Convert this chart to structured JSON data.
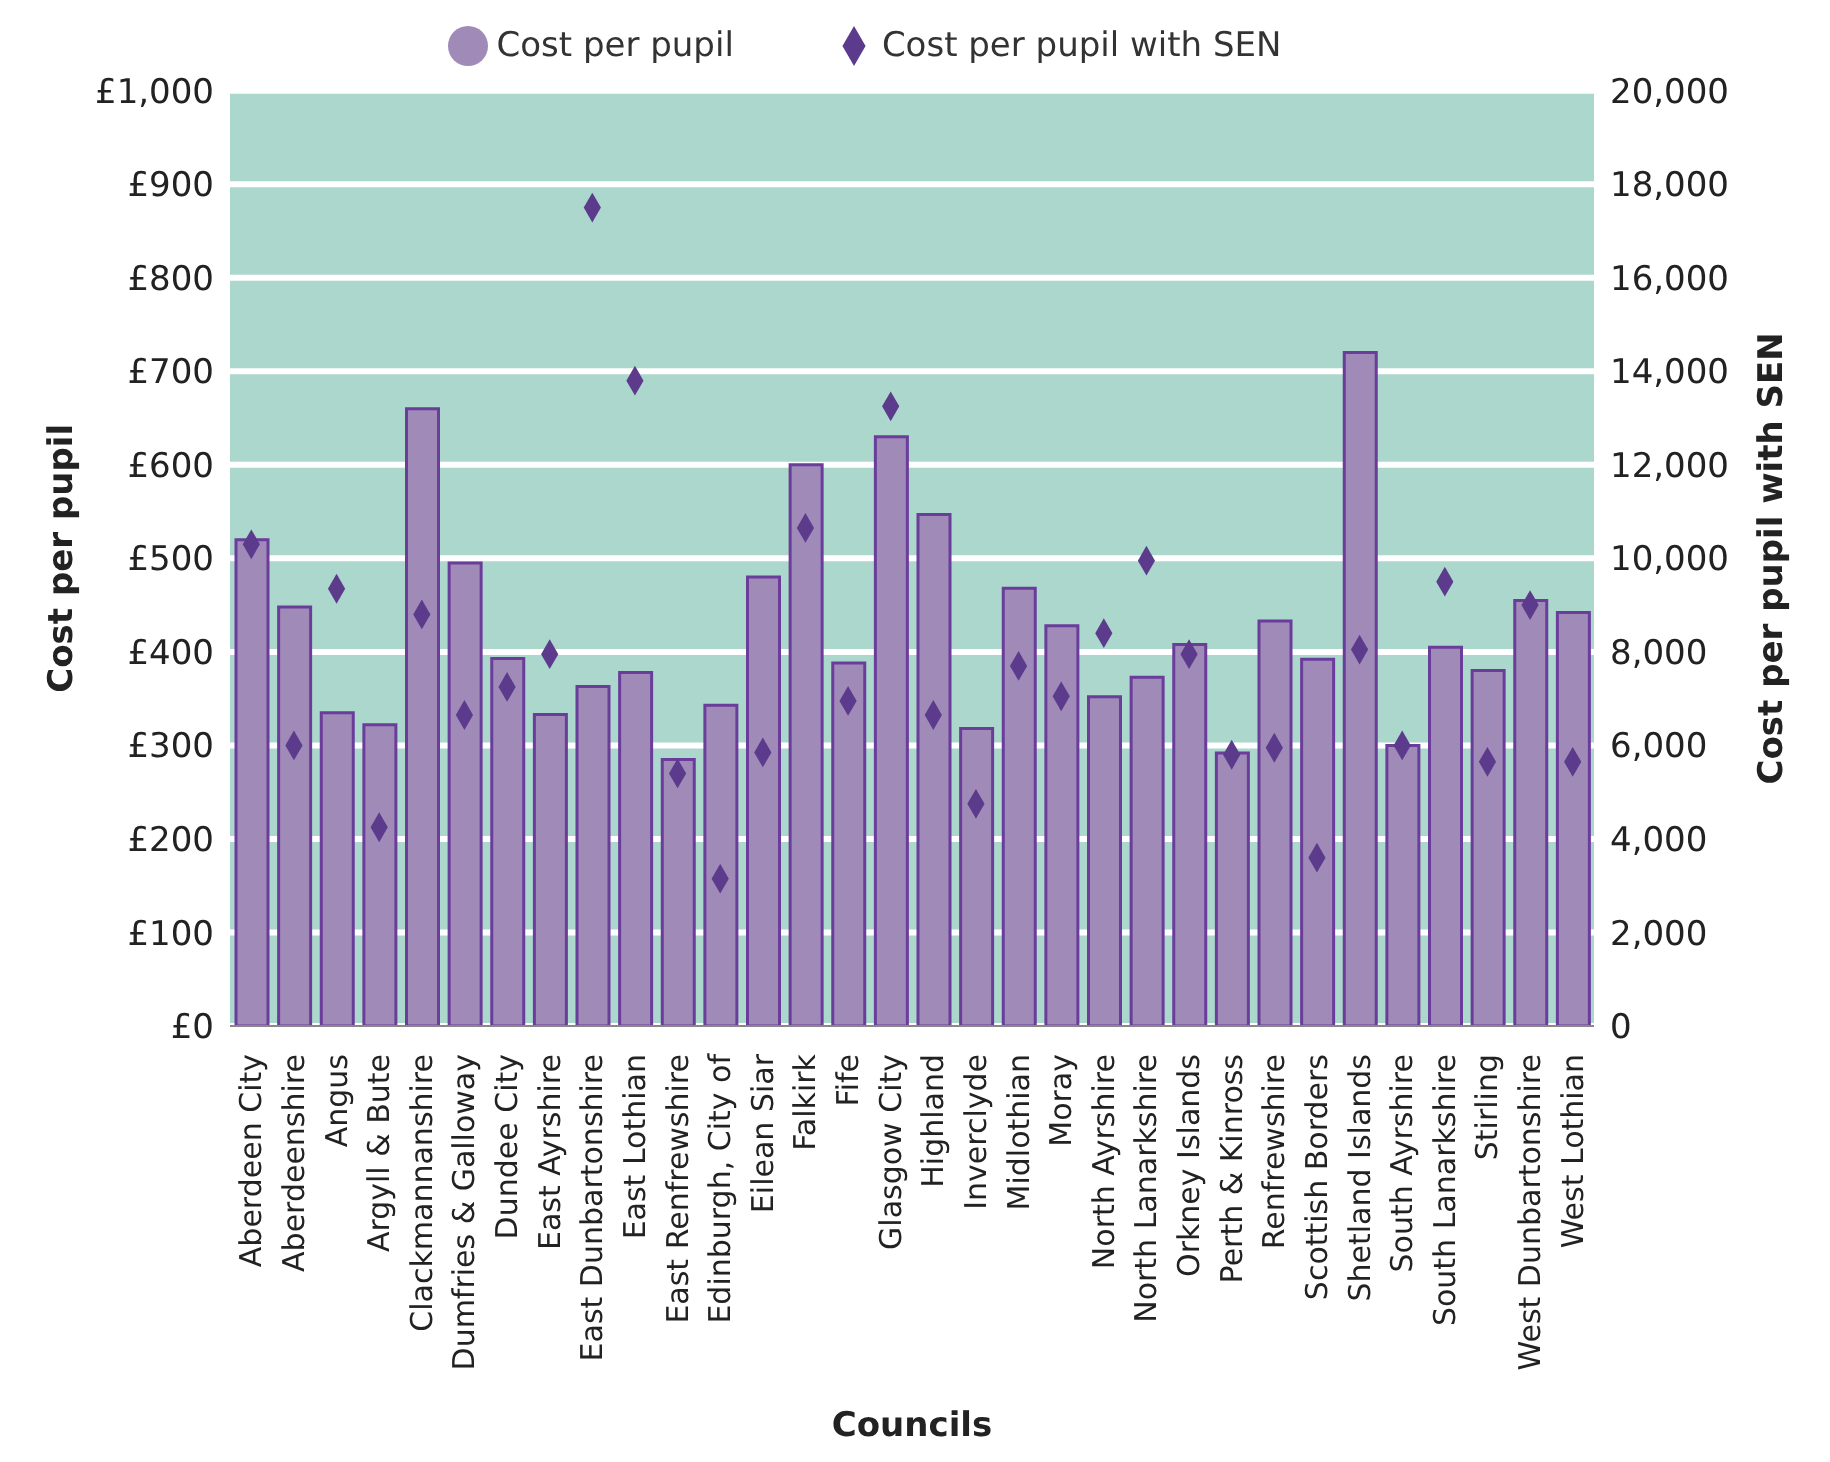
{
  "chart_data": {
    "type": "bar",
    "xlabel": "Councils",
    "ylabel": "Cost per pupil",
    "y2label": "Cost per pupil with SEN",
    "categories": [
      "Aberdeen City",
      "Aberdeenshire",
      "Angus",
      "Argyll & Bute",
      "Clackmannanshire",
      "Dumfries & Galloway",
      "Dundee City",
      "East Ayrshire",
      "East Dunbartonshire",
      "East Lothian",
      "East Renfrewshire",
      "Edinburgh, City of",
      "Eilean Siar",
      "Falkirk",
      "Fife",
      "Glasgow City",
      "Highland",
      "Inverclyde",
      "Midlothian",
      "Moray",
      "North Ayrshire",
      "North Lanarkshire",
      "Orkney Islands",
      "Perth & Kinross",
      "Renfrewshire",
      "Scottish Borders",
      "Shetland Islands",
      "South Ayrshire",
      "South Lanarkshire",
      "Stirling",
      "West Dunbartonshire",
      "West Lothian"
    ],
    "series": [
      {
        "name": "Cost per pupil",
        "color": "#a08ab8",
        "values": [
          520,
          448,
          335,
          322,
          660,
          495,
          393,
          333,
          363,
          378,
          285,
          343,
          480,
          600,
          388,
          630,
          547,
          318,
          468,
          428,
          352,
          373,
          408,
          292,
          433,
          392,
          720,
          300,
          405,
          380,
          455,
          442
        ]
      },
      {
        "name": "Cost per pupil with SEN",
        "type": "scatter",
        "axis": "y2",
        "marker": "diamond",
        "color": "#5c3a8c",
        "values": [
          10300,
          6000,
          9350,
          4250,
          8800,
          6650,
          7250,
          7950,
          17500,
          13800,
          5400,
          3150,
          5850,
          10650,
          6950,
          13250,
          6650,
          4750,
          7700,
          7050,
          8400,
          9950,
          7950,
          5800,
          5950,
          3600,
          8050,
          6000,
          9500,
          5650,
          9000,
          5650
        ]
      }
    ],
    "ylim": [
      0,
      1000
    ],
    "yticks": [
      {
        "value": 0,
        "label": "£0"
      },
      {
        "value": 100,
        "label": "£100"
      },
      {
        "value": 200,
        "label": "£200"
      },
      {
        "value": 300,
        "label": "£300"
      },
      {
        "value": 400,
        "label": "£400"
      },
      {
        "value": 500,
        "label": "£500"
      },
      {
        "value": 600,
        "label": "£600"
      },
      {
        "value": 700,
        "label": "£700"
      },
      {
        "value": 800,
        "label": "£800"
      },
      {
        "value": 900,
        "label": "£900"
      },
      {
        "value": 1000,
        "label": "£1,000"
      }
    ],
    "y2lim": [
      0,
      20000
    ],
    "y2ticks": [
      0,
      {
        "value": 2000,
        "label": "2,000"
      },
      {
        "value": 4000,
        "label": "4,000"
      },
      {
        "value": 6000,
        "label": "6,000"
      },
      {
        "value": 8000,
        "label": "8,000"
      },
      {
        "value": 10000,
        "label": "10,000"
      },
      {
        "value": 12000,
        "label": "12,000"
      },
      {
        "value": 14000,
        "label": "14,000"
      },
      {
        "value": 16000,
        "label": "16,000"
      },
      {
        "value": 18000,
        "label": "18,000"
      },
      {
        "value": 20000,
        "label": "20,000"
      }
    ],
    "grid": "y",
    "legend": "top"
  }
}
